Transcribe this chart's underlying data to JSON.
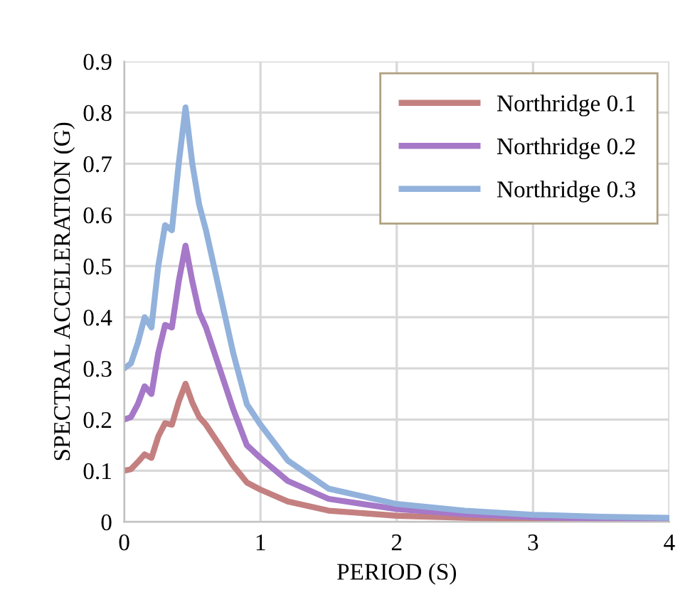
{
  "chart_data": {
    "type": "line",
    "xlabel": "PERIOD (S)",
    "ylabel": "SPECTRAL ACCELERATION (G)",
    "x": [
      0,
      0.05,
      0.1,
      0.15,
      0.2,
      0.25,
      0.3,
      0.35,
      0.4,
      0.45,
      0.5,
      0.55,
      0.6,
      0.7,
      0.8,
      0.9,
      1.0,
      1.2,
      1.5,
      2,
      2.5,
      3,
      3.5,
      4
    ],
    "series": [
      {
        "name": "Northridge 0.1",
        "color": "#c48080",
        "values": [
          0.1,
          0.103,
          0.117,
          0.132,
          0.125,
          0.167,
          0.193,
          0.19,
          0.235,
          0.27,
          0.233,
          0.205,
          0.19,
          0.15,
          0.11,
          0.077,
          0.063,
          0.04,
          0.022,
          0.012,
          0.008,
          0.005,
          0.004,
          0.003
        ]
      },
      {
        "name": "Northridge 0.2",
        "color": "#a678c8",
        "values": [
          0.2,
          0.205,
          0.23,
          0.265,
          0.25,
          0.33,
          0.385,
          0.38,
          0.47,
          0.54,
          0.47,
          0.41,
          0.38,
          0.3,
          0.22,
          0.15,
          0.125,
          0.08,
          0.045,
          0.025,
          0.015,
          0.009,
          0.007,
          0.005
        ]
      },
      {
        "name": "Northridge 0.3",
        "color": "#92b2dc",
        "values": [
          0.3,
          0.31,
          0.35,
          0.4,
          0.38,
          0.5,
          0.58,
          0.57,
          0.7,
          0.81,
          0.7,
          0.62,
          0.57,
          0.45,
          0.33,
          0.23,
          0.19,
          0.12,
          0.065,
          0.035,
          0.022,
          0.014,
          0.01,
          0.008
        ]
      }
    ],
    "xlim": [
      0,
      4
    ],
    "xticks": [
      0,
      1,
      2,
      3,
      4
    ],
    "ylim": [
      0,
      0.9
    ],
    "yticks": [
      0,
      0.1,
      0.2,
      0.3,
      0.4,
      0.5,
      0.6,
      0.7,
      0.8,
      0.9
    ],
    "grid": true,
    "legend": "top right",
    "marker": "none",
    "line_style": "solid"
  }
}
